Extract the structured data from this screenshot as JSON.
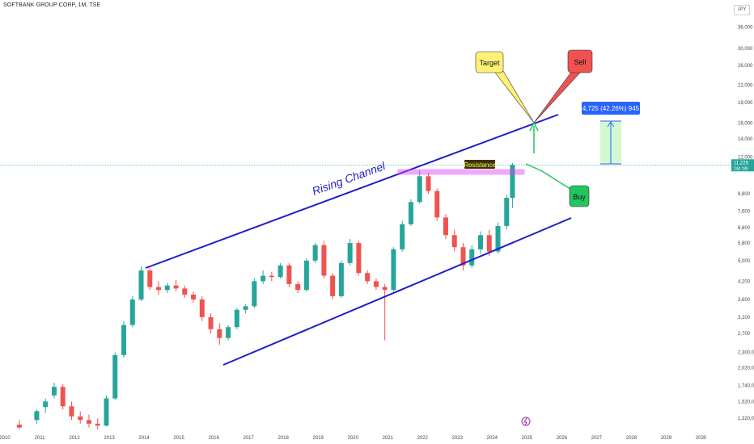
{
  "header": {
    "title": "SOFTBANK GROUP CORP, 1M, TSE",
    "currency": "JPY"
  },
  "colors": {
    "up": "#26a69a",
    "down": "#ef5350",
    "channel": "#1f1fc8",
    "resistance": "#e040fb",
    "buy": "#22c55e",
    "sell": "#f05252",
    "target": "#fff176",
    "measure": "#2962ff",
    "price_line": "#26a69a"
  },
  "chart_data": {
    "type": "candlestick",
    "y_scale": "log",
    "ylim": [
      1200,
      40000
    ],
    "xlim": [
      "2010-01",
      "2030-06"
    ],
    "x_ticks": [
      "2010",
      "2011",
      "2012",
      "2013",
      "2014",
      "2015",
      "2016",
      "2017",
      "2018",
      "2019",
      "2020",
      "2021",
      "2022",
      "2023",
      "2024",
      "2025",
      "2026",
      "2027",
      "2028",
      "2029",
      "2030"
    ],
    "y_ticks": [
      36000,
      30000,
      26000,
      22000,
      19000,
      16000,
      14000,
      12000,
      8800,
      7600,
      6600,
      5800,
      5000,
      4200,
      3600,
      3100,
      2700,
      2300,
      2020,
      1740,
      1520,
      1320
    ],
    "y_tick_labels": [
      "36,000",
      "30,000",
      "26,000",
      "22,000",
      "19,000",
      "16,000",
      "14,000",
      "12,000",
      "8,800",
      "7,600",
      "6,600",
      "5,800",
      "5,000",
      "4,200",
      "3,600",
      "3,100",
      "2,700",
      "2,300,0",
      "2,020,0",
      "1,740,0",
      "1,520,0",
      "1,320,0"
    ],
    "last_price": {
      "value": 11225,
      "label": "11,225",
      "countdown": "24d 19h"
    },
    "candles": [
      {
        "t": "2010-06",
        "o": 1250,
        "h": 1300,
        "l": 1200,
        "c": 1220
      },
      {
        "t": "2010-12",
        "o": 1300,
        "h": 1420,
        "l": 1260,
        "c": 1400
      },
      {
        "t": "2011-03",
        "o": 1450,
        "h": 1560,
        "l": 1380,
        "c": 1520
      },
      {
        "t": "2011-06",
        "o": 1600,
        "h": 1780,
        "l": 1560,
        "c": 1720
      },
      {
        "t": "2011-09",
        "o": 1720,
        "h": 1760,
        "l": 1420,
        "c": 1460
      },
      {
        "t": "2011-12",
        "o": 1460,
        "h": 1520,
        "l": 1300,
        "c": 1340
      },
      {
        "t": "2012-03",
        "o": 1340,
        "h": 1400,
        "l": 1260,
        "c": 1300
      },
      {
        "t": "2012-06",
        "o": 1300,
        "h": 1360,
        "l": 1220,
        "c": 1260
      },
      {
        "t": "2012-09",
        "o": 1260,
        "h": 1320,
        "l": 1200,
        "c": 1240
      },
      {
        "t": "2012-12",
        "o": 1240,
        "h": 1600,
        "l": 1230,
        "c": 1560
      },
      {
        "t": "2013-03",
        "o": 1560,
        "h": 2300,
        "l": 1540,
        "c": 2250
      },
      {
        "t": "2013-06",
        "o": 2250,
        "h": 3000,
        "l": 2200,
        "c": 2900
      },
      {
        "t": "2013-09",
        "o": 2900,
        "h": 3700,
        "l": 2850,
        "c": 3600
      },
      {
        "t": "2013-12",
        "o": 3600,
        "h": 4750,
        "l": 3550,
        "c": 4600
      },
      {
        "t": "2014-03",
        "o": 4600,
        "h": 4700,
        "l": 3900,
        "c": 4000
      },
      {
        "t": "2014-06",
        "o": 4000,
        "h": 4200,
        "l": 3750,
        "c": 3900
      },
      {
        "t": "2014-09",
        "o": 3900,
        "h": 4150,
        "l": 3800,
        "c": 4050
      },
      {
        "t": "2014-12",
        "o": 4050,
        "h": 4250,
        "l": 3850,
        "c": 3950
      },
      {
        "t": "2015-03",
        "o": 3950,
        "h": 4050,
        "l": 3650,
        "c": 3750
      },
      {
        "t": "2015-06",
        "o": 3750,
        "h": 3850,
        "l": 3500,
        "c": 3600
      },
      {
        "t": "2015-09",
        "o": 3600,
        "h": 3700,
        "l": 3000,
        "c": 3100
      },
      {
        "t": "2015-12",
        "o": 3100,
        "h": 3200,
        "l": 2700,
        "c": 2800
      },
      {
        "t": "2016-03",
        "o": 2800,
        "h": 2950,
        "l": 2450,
        "c": 2600
      },
      {
        "t": "2016-06",
        "o": 2600,
        "h": 2900,
        "l": 2550,
        "c": 2850
      },
      {
        "t": "2016-09",
        "o": 2850,
        "h": 3350,
        "l": 2800,
        "c": 3300
      },
      {
        "t": "2016-12",
        "o": 3300,
        "h": 3450,
        "l": 3200,
        "c": 3400
      },
      {
        "t": "2017-03",
        "o": 3400,
        "h": 4300,
        "l": 3350,
        "c": 4200
      },
      {
        "t": "2017-06",
        "o": 4200,
        "h": 4600,
        "l": 4100,
        "c": 4400
      },
      {
        "t": "2017-09",
        "o": 4400,
        "h": 4550,
        "l": 4200,
        "c": 4350
      },
      {
        "t": "2017-12",
        "o": 4350,
        "h": 4900,
        "l": 4300,
        "c": 4800
      },
      {
        "t": "2018-03",
        "o": 4800,
        "h": 4900,
        "l": 4000,
        "c": 4100
      },
      {
        "t": "2018-06",
        "o": 4100,
        "h": 4200,
        "l": 3800,
        "c": 3900
      },
      {
        "t": "2018-09",
        "o": 3900,
        "h": 5100,
        "l": 3850,
        "c": 5000
      },
      {
        "t": "2018-12",
        "o": 5000,
        "h": 5800,
        "l": 4900,
        "c": 5700
      },
      {
        "t": "2019-03",
        "o": 5700,
        "h": 5900,
        "l": 4300,
        "c": 4400
      },
      {
        "t": "2019-06",
        "o": 4400,
        "h": 4500,
        "l": 3600,
        "c": 3700
      },
      {
        "t": "2019-09",
        "o": 3700,
        "h": 5000,
        "l": 3650,
        "c": 4900
      },
      {
        "t": "2019-12",
        "o": 4900,
        "h": 6000,
        "l": 4800,
        "c": 5800
      },
      {
        "t": "2020-03",
        "o": 5800,
        "h": 5900,
        "l": 4400,
        "c": 4500
      },
      {
        "t": "2020-06",
        "o": 4500,
        "h": 4600,
        "l": 4100,
        "c": 4200
      },
      {
        "t": "2020-09",
        "o": 4200,
        "h": 4300,
        "l": 3900,
        "c": 4000
      },
      {
        "t": "2020-12",
        "o": 4000,
        "h": 4100,
        "l": 2550,
        "c": 3900
      },
      {
        "t": "2021-03",
        "o": 3900,
        "h": 5600,
        "l": 3850,
        "c": 5500
      },
      {
        "t": "2021-06",
        "o": 5500,
        "h": 7000,
        "l": 5400,
        "c": 6800
      },
      {
        "t": "2021-09",
        "o": 6800,
        "h": 8400,
        "l": 6700,
        "c": 8200
      },
      {
        "t": "2021-12",
        "o": 8200,
        "h": 10700,
        "l": 8100,
        "c": 10200
      },
      {
        "t": "2022-03",
        "o": 10200,
        "h": 10500,
        "l": 8800,
        "c": 9000
      },
      {
        "t": "2022-06",
        "o": 9000,
        "h": 9200,
        "l": 7000,
        "c": 7200
      },
      {
        "t": "2022-09",
        "o": 7200,
        "h": 7400,
        "l": 6000,
        "c": 6200
      },
      {
        "t": "2022-12",
        "o": 6200,
        "h": 6500,
        "l": 5400,
        "c": 5600
      },
      {
        "t": "2023-03",
        "o": 5600,
        "h": 5800,
        "l": 4600,
        "c": 4800
      },
      {
        "t": "2023-06",
        "o": 4800,
        "h": 5700,
        "l": 4700,
        "c": 5500
      },
      {
        "t": "2023-09",
        "o": 5500,
        "h": 6400,
        "l": 5300,
        "c": 6200
      },
      {
        "t": "2023-12",
        "o": 6200,
        "h": 6500,
        "l": 5200,
        "c": 5400
      },
      {
        "t": "2024-03",
        "o": 5400,
        "h": 6900,
        "l": 5300,
        "c": 6700
      },
      {
        "t": "2024-06",
        "o": 6700,
        "h": 8700,
        "l": 6500,
        "c": 8500
      },
      {
        "t": "2024-08",
        "o": 8500,
        "h": 11400,
        "l": 7800,
        "c": 11225
      }
    ],
    "annotations": {
      "channel_label": "Rising Channel",
      "resistance_label": "Resistance",
      "target_label": "Target",
      "sell_label": "Sell",
      "buy_label": "Buy",
      "measure_label": "4,725 (42.26%) 945"
    }
  }
}
